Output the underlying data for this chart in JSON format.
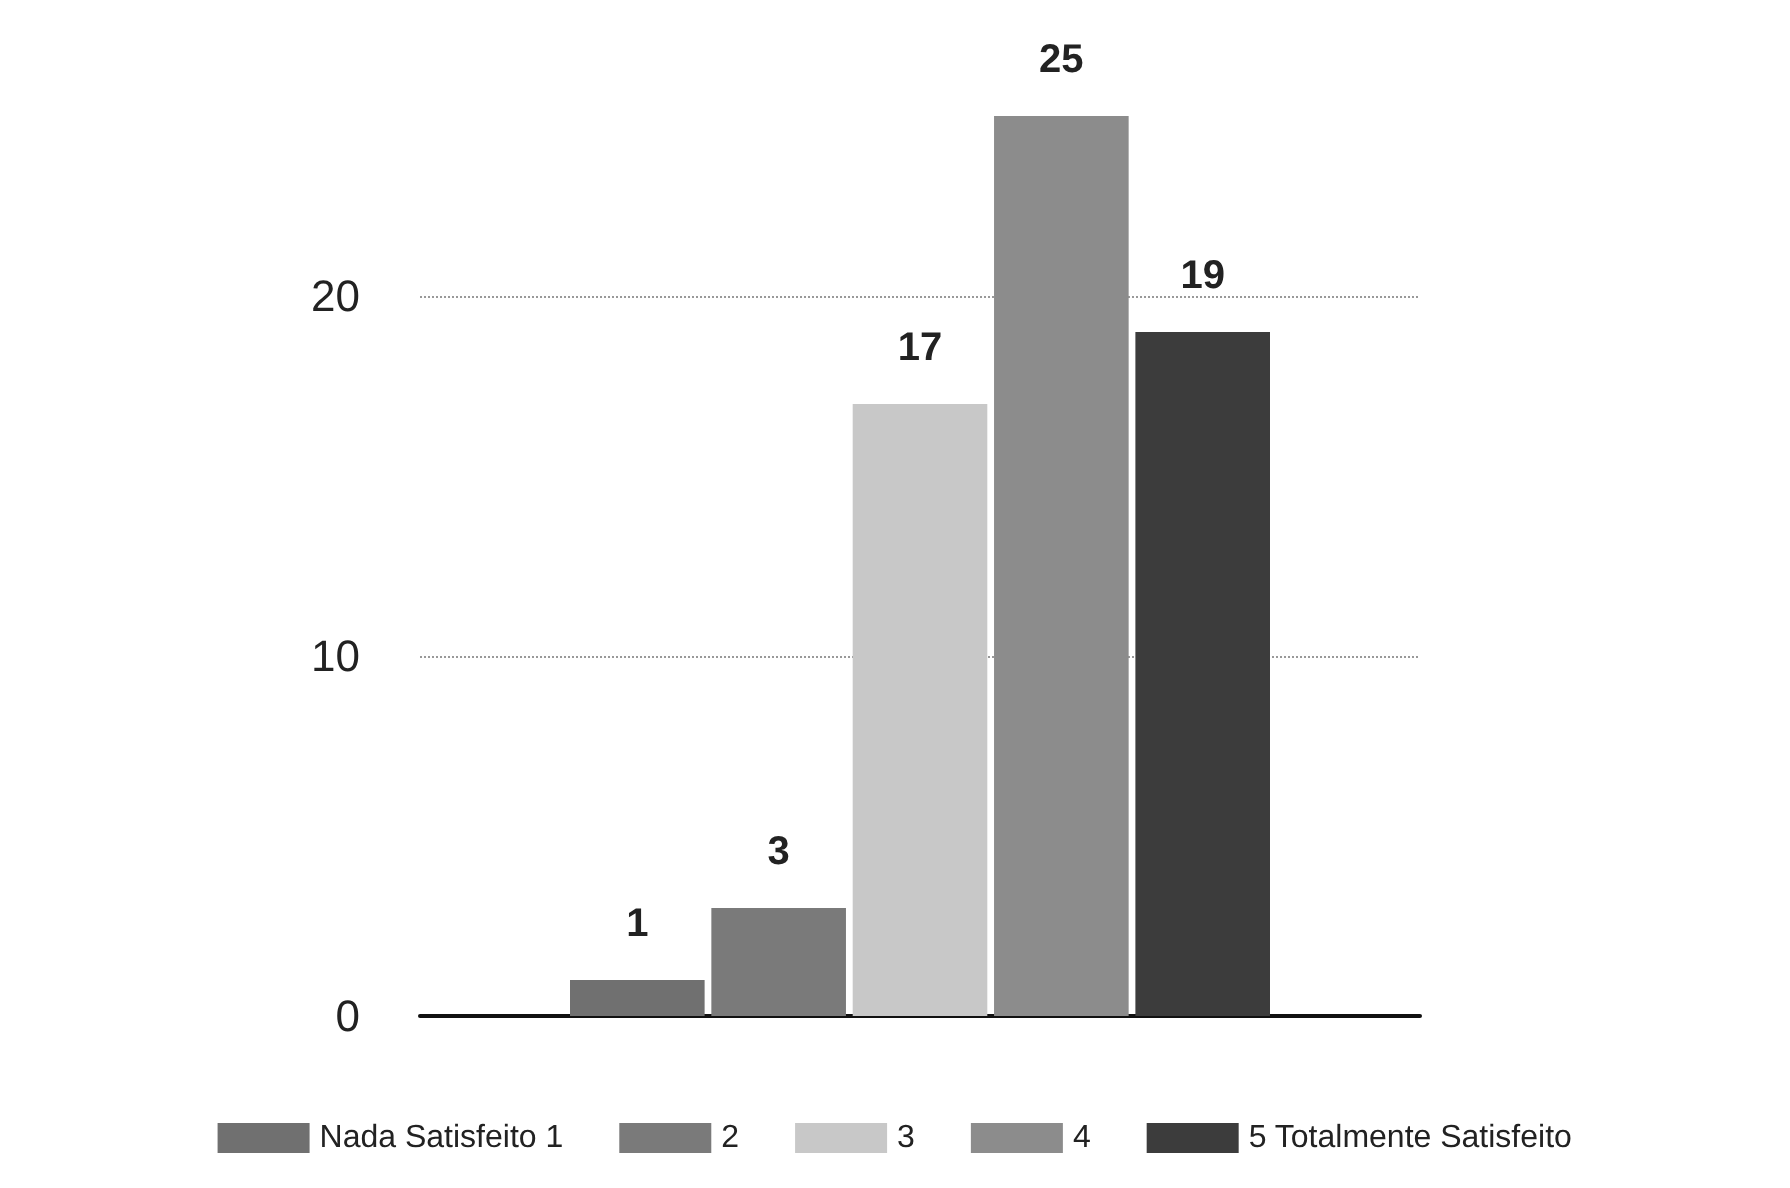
{
  "chart_data": {
    "type": "bar",
    "categories": [
      null
    ],
    "series": [
      {
        "name": "Nada Satisfeito 1",
        "color": "#707070",
        "values": [
          1
        ]
      },
      {
        "name": "2",
        "color": "#7a7a7a",
        "values": [
          3
        ]
      },
      {
        "name": "3",
        "color": "#c8c8c8",
        "values": [
          17
        ]
      },
      {
        "name": "4",
        "color": "#8c8c8c",
        "values": [
          25
        ]
      },
      {
        "name": "5 Totalmente Satisfeito",
        "color": "#3c3c3c",
        "values": [
          19
        ]
      }
    ],
    "ylim": [
      0,
      25
    ],
    "yticks": [
      0,
      10,
      20
    ],
    "grid": "y",
    "legend": "bottom",
    "data_labels": true
  }
}
